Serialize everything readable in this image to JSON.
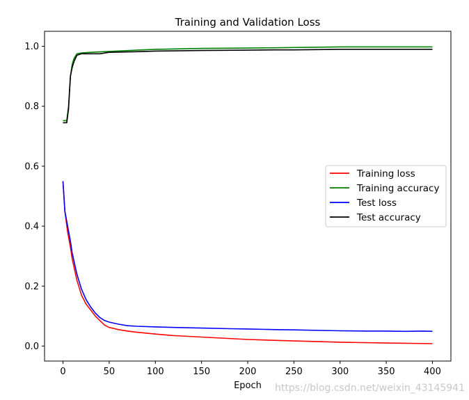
{
  "chart_data": {
    "type": "line",
    "title": "Training and Validation Loss",
    "xlabel": "Epoch",
    "ylabel": "",
    "xlim": [
      -20,
      420
    ],
    "ylim": [
      -0.05,
      1.05
    ],
    "xticks": [
      0,
      50,
      100,
      150,
      200,
      250,
      300,
      350,
      400
    ],
    "yticks": [
      0.0,
      0.2,
      0.4,
      0.6,
      0.8,
      1.0
    ],
    "grid": false,
    "legend_position": "center-right",
    "watermark": "https://blog.csdn.net/weixin_43145941",
    "series": [
      {
        "name": "Training loss",
        "color": "#ff0000",
        "x": [
          0,
          2,
          5,
          8,
          10,
          15,
          20,
          25,
          30,
          35,
          40,
          45,
          50,
          60,
          70,
          80,
          100,
          120,
          150,
          200,
          250,
          300,
          350,
          400
        ],
        "values": [
          0.55,
          0.45,
          0.38,
          0.33,
          0.29,
          0.22,
          0.17,
          0.14,
          0.12,
          0.1,
          0.085,
          0.07,
          0.062,
          0.055,
          0.05,
          0.046,
          0.04,
          0.035,
          0.03,
          0.022,
          0.017,
          0.013,
          0.01,
          0.008
        ]
      },
      {
        "name": "Training accuracy",
        "color": "#008000",
        "x": [
          0,
          4,
          6,
          8,
          10,
          12,
          15,
          20,
          30,
          50,
          80,
          100,
          150,
          200,
          230,
          250,
          300,
          400
        ],
        "values": [
          0.752,
          0.752,
          0.8,
          0.9,
          0.94,
          0.96,
          0.975,
          0.978,
          0.98,
          0.983,
          0.987,
          0.99,
          0.993,
          0.994,
          0.995,
          0.996,
          0.998,
          0.998
        ]
      },
      {
        "name": "Test loss",
        "color": "#0000ff",
        "x": [
          0,
          2,
          5,
          8,
          10,
          15,
          20,
          25,
          30,
          35,
          40,
          45,
          50,
          60,
          70,
          80,
          100,
          120,
          150,
          180,
          200,
          230,
          250,
          280,
          300,
          330,
          350,
          370,
          390,
          400
        ],
        "values": [
          0.55,
          0.45,
          0.4,
          0.35,
          0.31,
          0.24,
          0.19,
          0.155,
          0.13,
          0.11,
          0.095,
          0.085,
          0.08,
          0.073,
          0.068,
          0.066,
          0.064,
          0.062,
          0.06,
          0.058,
          0.057,
          0.055,
          0.054,
          0.052,
          0.051,
          0.05,
          0.05,
          0.049,
          0.05,
          0.049
        ]
      },
      {
        "name": "Test accuracy",
        "color": "#000000",
        "x": [
          0,
          4,
          6,
          8,
          10,
          12,
          15,
          20,
          40,
          50,
          80,
          100,
          150,
          200,
          230,
          250,
          300,
          400
        ],
        "values": [
          0.745,
          0.745,
          0.79,
          0.9,
          0.93,
          0.95,
          0.97,
          0.975,
          0.975,
          0.98,
          0.982,
          0.984,
          0.986,
          0.987,
          0.988,
          0.988,
          0.99,
          0.99
        ]
      }
    ]
  }
}
